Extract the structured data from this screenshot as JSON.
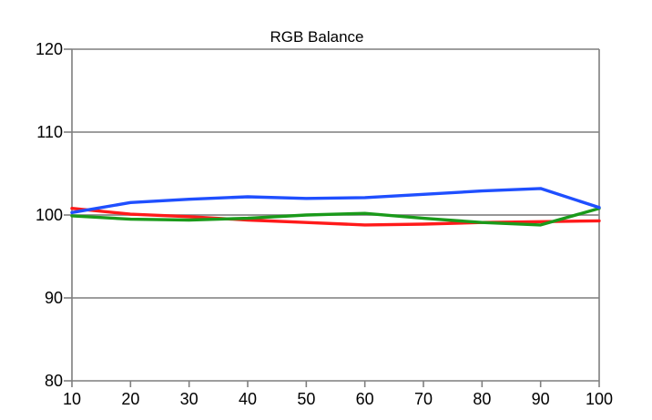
{
  "chart_data": {
    "type": "line",
    "title": "RGB Balance",
    "xlabel": "",
    "ylabel": "",
    "x": [
      10,
      20,
      30,
      40,
      50,
      60,
      70,
      80,
      90,
      100
    ],
    "xlim": [
      10,
      100
    ],
    "ylim": [
      80,
      120
    ],
    "xticks": [
      10,
      20,
      30,
      40,
      50,
      60,
      70,
      80,
      90,
      100
    ],
    "yticks": [
      80,
      90,
      100,
      110,
      120
    ],
    "reference_line": 100,
    "grid": "horizontal",
    "legend": "none",
    "series": [
      {
        "color": "#ff1a1a",
        "values": [
          100.8,
          100.1,
          99.8,
          99.4,
          99.1,
          98.8,
          98.9,
          99.1,
          99.2,
          99.3
        ]
      },
      {
        "color": "#1a9a1a",
        "values": [
          99.9,
          99.5,
          99.4,
          99.6,
          100.0,
          100.2,
          99.6,
          99.1,
          98.8,
          100.8
        ]
      },
      {
        "color": "#1f4fff",
        "values": [
          100.3,
          101.5,
          101.9,
          102.2,
          102.0,
          102.1,
          102.5,
          102.9,
          103.2,
          100.9
        ]
      }
    ],
    "colors": {
      "axis": "#7f7f7f",
      "grid": "#7f7f7f",
      "reference_line": "#808080"
    }
  }
}
